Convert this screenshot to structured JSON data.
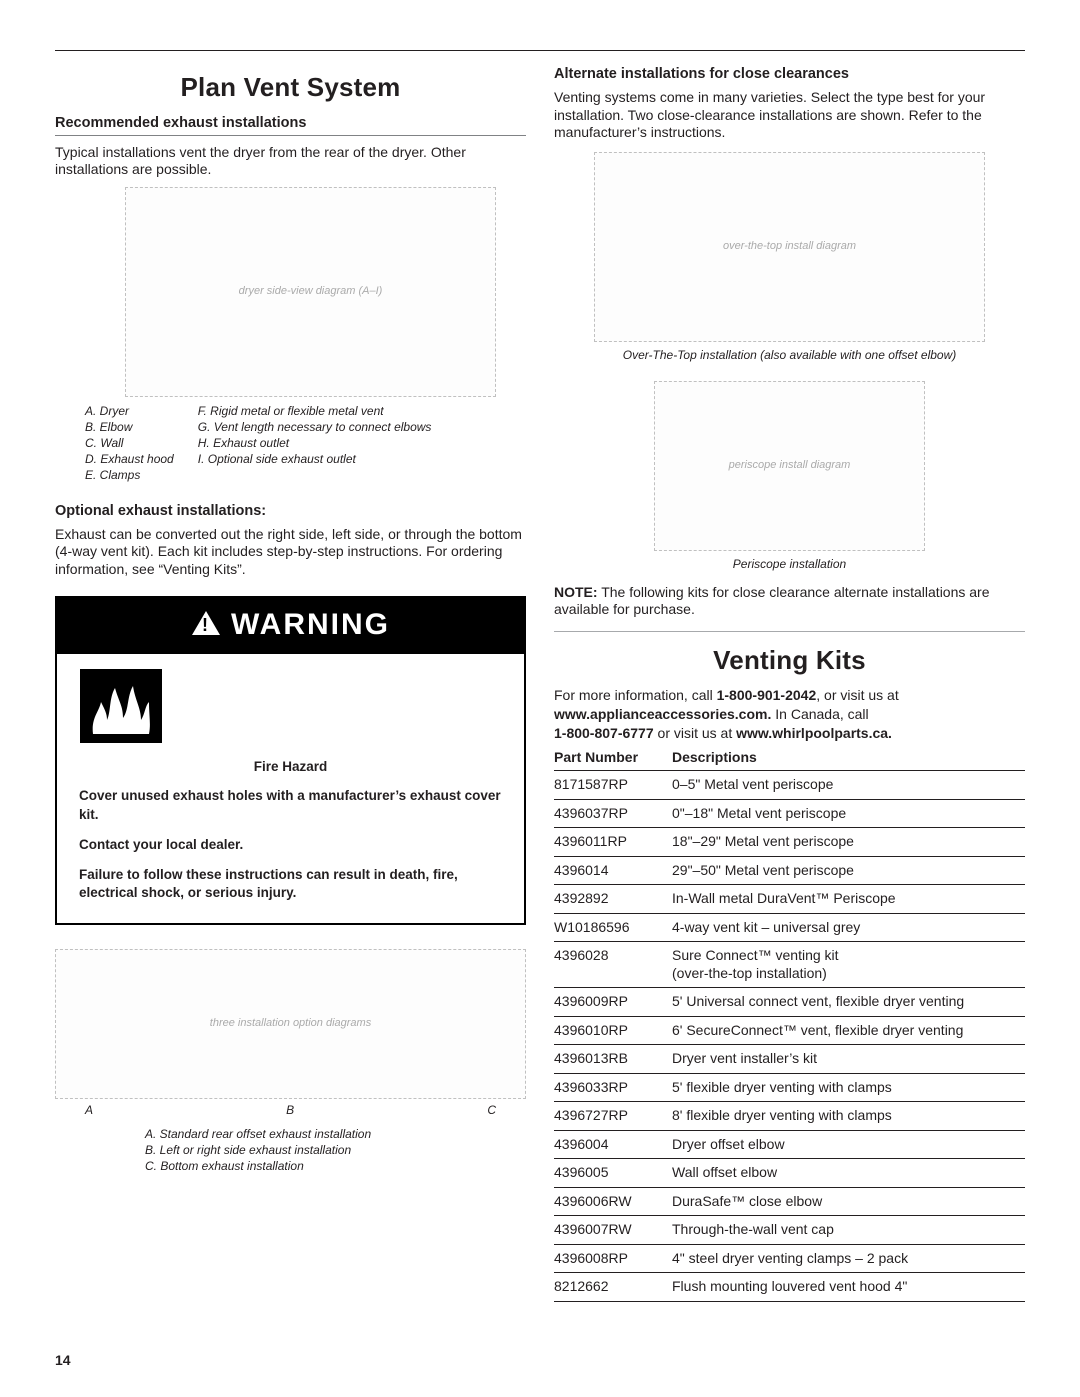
{
  "page_number": "14",
  "left": {
    "section_title": "Plan Vent System",
    "sub1": "Recommended exhaust installations",
    "para1": "Typical installations vent the dryer from the rear of the dryer. Other installations are possible.",
    "legend_left": [
      "A.  Dryer",
      "B.  Elbow",
      "C.  Wall",
      "D.  Exhaust hood",
      "E.  Clamps"
    ],
    "legend_right": [
      "F.   Rigid metal or flexible metal vent",
      "G.  Vent length necessary to connect elbows",
      "H.  Exhaust outlet",
      "I.    Optional side exhaust outlet"
    ],
    "optional_heading": "Optional exhaust installations:",
    "optional_para": "Exhaust can be converted out the right side, left side, or through the bottom (4-way vent kit). Each kit includes step-by-step instructions. For ordering information, see “Venting Kits”.",
    "warning_word": "WARNING",
    "hazard_title": "Fire Hazard",
    "warn_p1": "Cover unused exhaust holes with a manufacturer’s exhaust cover kit.",
    "warn_p2": "Contact your local dealer.",
    "warn_p3": "Failure to follow these instructions can result in death, fire, electrical shock, or serious injury.",
    "fig_labels": {
      "a": "A",
      "b": "B",
      "c": "C"
    },
    "fig_legend": [
      "A.  Standard rear offset exhaust installation",
      "B.  Left or right side exhaust installation",
      "C.  Bottom exhaust installation"
    ]
  },
  "right": {
    "alt_heading": "Alternate installations for close clearances",
    "alt_para": "Venting systems come in many varieties. Select the type best for your installation. Two close-clearance installations are shown. Refer to the manufacturer’s instructions.",
    "cap1": "Over-The-Top installation (also available with one offset elbow)",
    "cap2": "Periscope installation",
    "note_label": "NOTE:",
    "note_text": " The following kits for close clearance alternate installations are available for purchase.",
    "kits_title": "Venting Kits",
    "kits_intro_1": "For more information, call ",
    "kits_phone1": "1-800-901-2042",
    "kits_intro_2": ", or visit us at ",
    "kits_site1": "www.applianceaccessories.com.",
    "kits_intro_3": " In Canada, call ",
    "kits_phone2": "1-800-807-6777",
    "kits_intro_4": " or visit us at ",
    "kits_site2": "www.whirlpoolparts.ca.",
    "table_h1": "Part Number",
    "table_h2": "Descriptions",
    "rows": [
      {
        "pn": "8171587RP",
        "d": "0–5\" Metal vent periscope"
      },
      {
        "pn": "4396037RP",
        "d": "0\"–18\" Metal vent periscope"
      },
      {
        "pn": "4396011RP",
        "d": "18\"–29\" Metal vent periscope"
      },
      {
        "pn": "4396014",
        "d": "29\"–50\" Metal vent periscope"
      },
      {
        "pn": "4392892",
        "d": "In-Wall metal DuraVent™ Periscope"
      },
      {
        "pn": "W10186596",
        "d": "4-way vent kit – universal grey"
      },
      {
        "pn": "4396028",
        "d": "Sure Connect™ venting kit\n(over-the-top installation)"
      },
      {
        "pn": "4396009RP",
        "d": "5' Universal connect vent, flexible dryer venting"
      },
      {
        "pn": "4396010RP",
        "d": "6' SecureConnect™ vent, flexible dryer venting"
      },
      {
        "pn": "4396013RB",
        "d": "Dryer vent installer’s kit"
      },
      {
        "pn": "4396033RP",
        "d": "5' flexible dryer venting with clamps"
      },
      {
        "pn": "4396727RP",
        "d": "8' flexible dryer venting with clamps"
      },
      {
        "pn": "4396004",
        "d": "Dryer offset elbow"
      },
      {
        "pn": "4396005",
        "d": "Wall offset elbow"
      },
      {
        "pn": "4396006RW",
        "d": "DuraSafe™ close elbow"
      },
      {
        "pn": "4396007RW",
        "d": "Through-the-wall vent cap"
      },
      {
        "pn": "4396008RP",
        "d": "4\" steel dryer venting clamps – 2 pack"
      },
      {
        "pn": "8212662",
        "d": "Flush mounting louvered vent hood 4\""
      }
    ]
  }
}
